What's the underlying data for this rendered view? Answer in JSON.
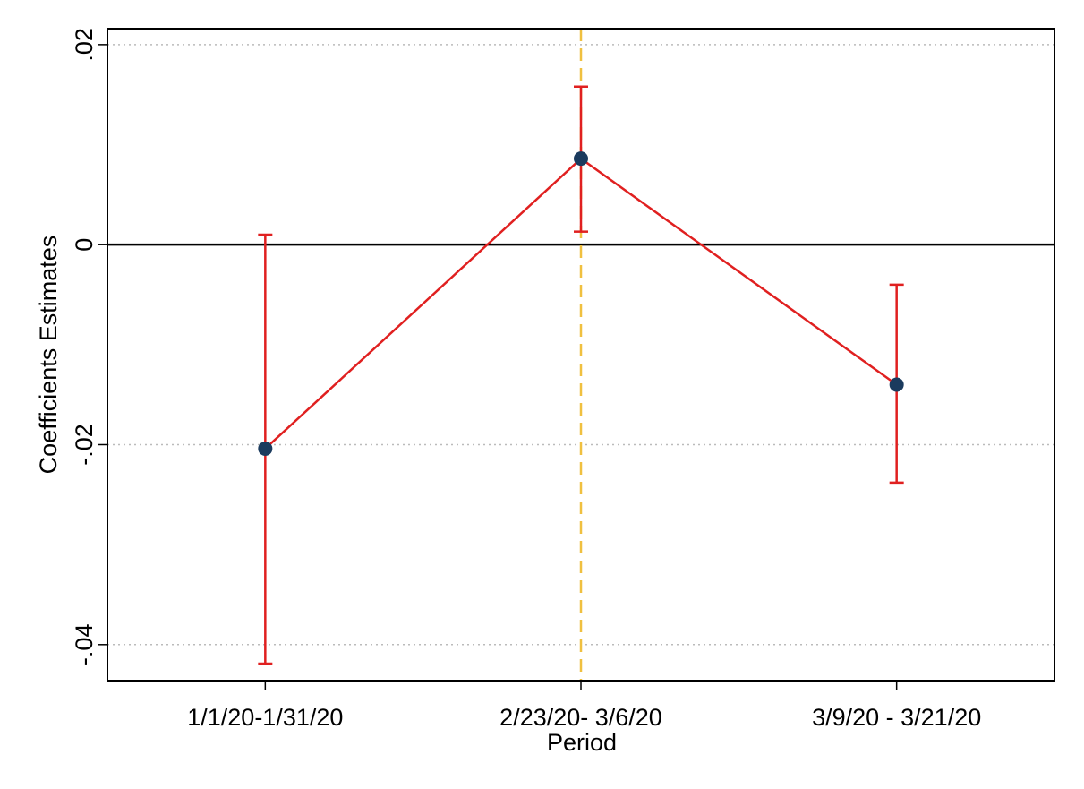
{
  "chart_data": {
    "type": "coefplot",
    "x_label": "Period",
    "y_label": "Coefficients Estimates",
    "categories": [
      "1/1/20-1/31/20",
      "2/23/20- 3/6/20",
      "3/9/20 - 3/21/20"
    ],
    "values": [
      -0.0204,
      0.0086,
      -0.014
    ],
    "ci_low": [
      -0.0419,
      0.0013,
      -0.0238
    ],
    "ci_high": [
      0.001,
      0.0158,
      -0.004
    ],
    "color": "#e02020",
    "marker_color": "#1b3b5e",
    "ylim": [
      -0.0436,
      0.0216
    ],
    "yticks": [
      {
        "value": -0.04,
        "label": "-.04"
      },
      {
        "value": -0.02,
        "label": "-.02"
      },
      0,
      {
        "value": 0.02,
        "label": ".02"
      }
    ],
    "hline": 0,
    "vline_category": 1,
    "vline_color": "#f0c040",
    "grid": true
  }
}
